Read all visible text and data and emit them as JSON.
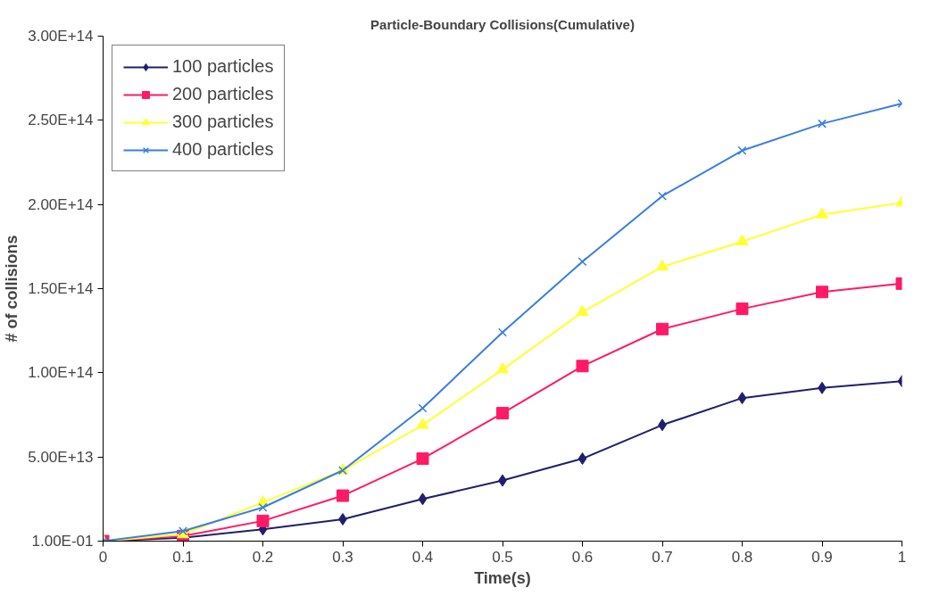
{
  "chart_data": {
    "type": "line",
    "title": "Particle-Boundary Collisions(Cumulative)",
    "xlabel": "Time(s)",
    "ylabel": "# of collisions",
    "x": [
      0,
      0.1,
      0.2,
      0.3,
      0.4,
      0.5,
      0.6,
      0.7,
      0.8,
      0.9,
      1
    ],
    "xlim": [
      0,
      1
    ],
    "xticks": [
      0,
      0.1,
      0.2,
      0.3,
      0.4,
      0.5,
      0.6,
      0.7,
      0.8,
      0.9,
      1
    ],
    "ylim": [
      0.1,
      300000000000000.0
    ],
    "yticks": [
      {
        "value": 0.1,
        "label": "1.00E-01"
      },
      {
        "value": 50000000000000.0,
        "label": "5.00E+13"
      },
      {
        "value": 100000000000000.0,
        "label": "1.00E+14"
      },
      {
        "value": 150000000000000.0,
        "label": "1.50E+14"
      },
      {
        "value": 200000000000000.0,
        "label": "2.00E+14"
      },
      {
        "value": 250000000000000.0,
        "label": "2.50E+14"
      },
      {
        "value": 300000000000000.0,
        "label": "3.00E+14"
      }
    ],
    "grid": false,
    "legend": "top left",
    "line_style": "solid",
    "series": [
      {
        "name": "100 particles",
        "color": "#1f1f6e",
        "marker": "diamond",
        "values": [
          0.1,
          2000000000000.0,
          7000000000000.0,
          13000000000000.0,
          25000000000000.0,
          36000000000000.0,
          49000000000000.0,
          69000000000000.0,
          85000000000000.0,
          91000000000000.0,
          95000000000000.0
        ]
      },
      {
        "name": "200 particles",
        "color": "#ff1a66",
        "marker": "square",
        "values": [
          0.1,
          3000000000000.0,
          12000000000000.0,
          27000000000000.0,
          49000000000000.0,
          76000000000000.0,
          104000000000000.0,
          126000000000000.0,
          138000000000000.0,
          148000000000000.0,
          153000000000000.0
        ]
      },
      {
        "name": "300 particles",
        "color": "#ffff33",
        "marker": "triangle",
        "values": [
          0.1,
          4000000000000.0,
          23000000000000.0,
          42000000000000.0,
          69000000000000.0,
          102000000000000.0,
          136000000000000.0,
          163000000000000.0,
          178000000000000.0,
          194000000000000.0,
          201000000000000.0
        ]
      },
      {
        "name": "400 particles",
        "color": "#3a7ee0",
        "marker": "cross",
        "values": [
          0.1,
          6000000000000.0,
          20000000000000.0,
          42000000000000.0,
          79000000000000.0,
          124000000000000.0,
          166000000000000.0,
          205000000000000.0,
          232000000000000.0,
          248000000000000.0,
          260000000000000.0
        ]
      }
    ]
  }
}
